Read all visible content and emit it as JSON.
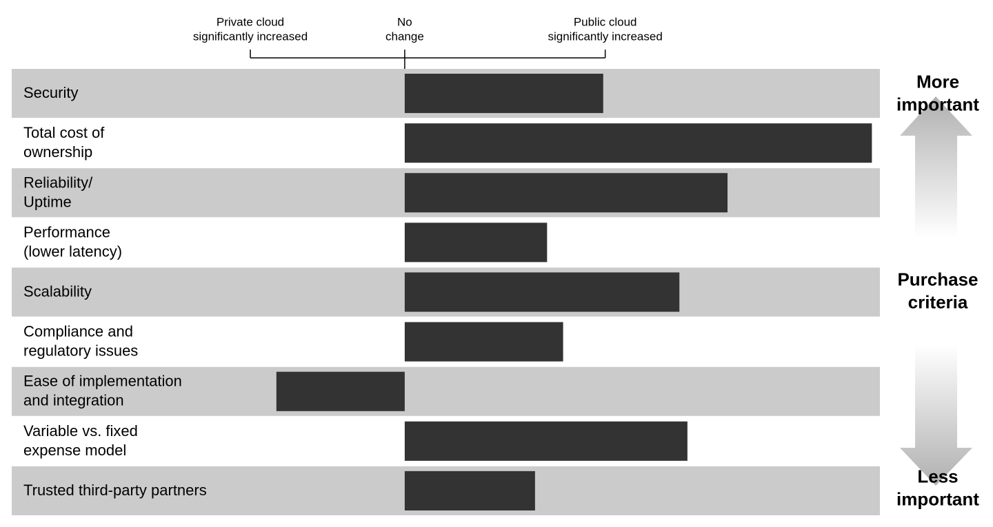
{
  "chart_data": {
    "type": "diverging-bar",
    "categories": [
      "Security",
      "Total cost of\nownership",
      "Reliability/\nUptime",
      "Performance\n(lower latency)",
      "Scalability",
      "Compliance and\nregulatory issues",
      "Ease of implementation\nand integration",
      "Variable vs. fixed\nexpense model",
      "Trusted third-party partners"
    ],
    "values": [
      0.99,
      2.33,
      1.61,
      0.71,
      1.37,
      0.79,
      -0.64,
      1.41,
      0.65
    ],
    "color": "#333333",
    "xlim": [
      -1.96,
      2.37
    ],
    "xticks": [
      {
        "value": -0.77,
        "label": "Private cloud\nsignificantly increased"
      },
      {
        "value": 0,
        "label": "No\nchange"
      },
      {
        "value": 1,
        "label": "Public cloud\nsignificantly increased"
      }
    ],
    "annotations": [
      "More\nimportant",
      "Purchase\ncriteria",
      "Less\nimportant"
    ]
  }
}
